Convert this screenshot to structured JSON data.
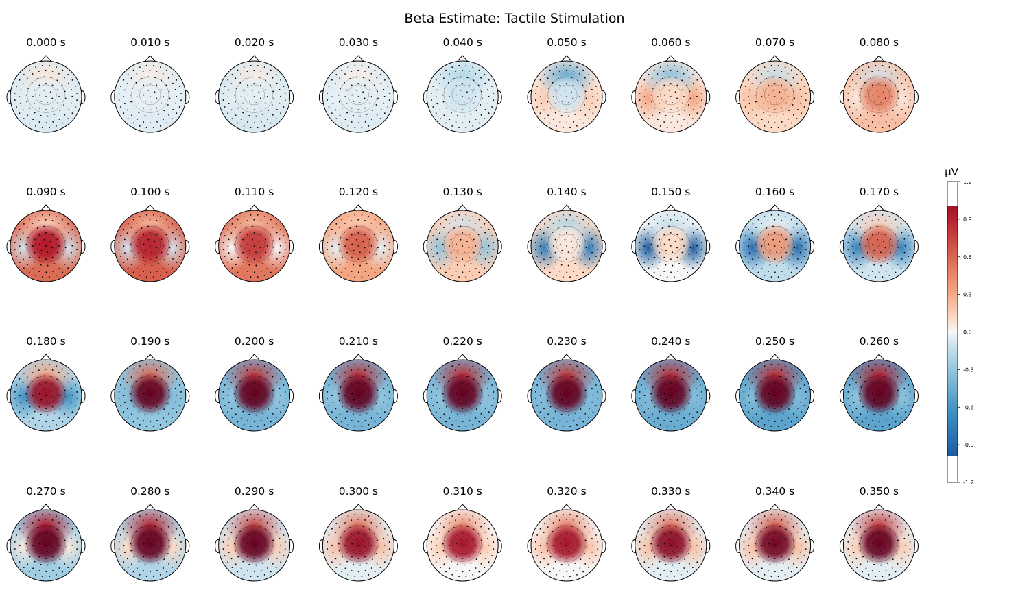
{
  "chart_data": {
    "type": "heatmap",
    "title": "Beta Estimate: Tactile Stimulation",
    "colorbar": {
      "unit": "µV",
      "ticks": [
        "1.2",
        "0.9",
        "0.6",
        "0.3",
        "0.0",
        "-0.3",
        "-0.6",
        "-0.9",
        "-1.2"
      ],
      "range": [
        -1.2,
        1.2
      ],
      "colormap": "RdBu_r",
      "colors": {
        "neg_max": "#053061",
        "neutral": "#f7f7f7",
        "pos_max": "#67001f"
      }
    },
    "time_unit": "s",
    "panels": [
      {
        "label": "0.000 s",
        "front": 0.06,
        "center": -0.05,
        "back": -0.07,
        "lat": -0.05
      },
      {
        "label": "0.010 s",
        "front": 0.04,
        "center": -0.04,
        "back": -0.06,
        "lat": -0.04
      },
      {
        "label": "0.020 s",
        "front": 0.04,
        "center": -0.05,
        "back": -0.08,
        "lat": -0.05
      },
      {
        "label": "0.030 s",
        "front": 0.03,
        "center": -0.05,
        "back": -0.06,
        "lat": -0.04
      },
      {
        "label": "0.040 s",
        "front": -0.2,
        "center": -0.1,
        "back": -0.05,
        "lat": -0.05
      },
      {
        "label": "0.050 s",
        "front": -0.5,
        "center": -0.1,
        "back": 0.05,
        "lat": 0.15
      },
      {
        "label": "0.060 s",
        "front": -0.35,
        "center": 0.1,
        "back": 0.05,
        "lat": 0.3
      },
      {
        "label": "0.070 s",
        "front": -0.15,
        "center": 0.25,
        "back": 0.1,
        "lat": 0.2
      },
      {
        "label": "0.080 s",
        "front": -0.1,
        "center": 0.45,
        "back": 0.2,
        "lat": 0.05
      },
      {
        "label": "0.090 s",
        "front": 0.1,
        "center": 0.9,
        "back": 0.55,
        "lat": -0.1
      },
      {
        "label": "0.100 s",
        "front": 0.2,
        "center": 0.85,
        "back": 0.6,
        "lat": -0.1
      },
      {
        "label": "0.110 s",
        "front": 0.2,
        "center": 0.75,
        "back": 0.5,
        "lat": 0.0
      },
      {
        "label": "0.120 s",
        "front": 0.15,
        "center": 0.6,
        "back": 0.3,
        "lat": -0.05
      },
      {
        "label": "0.130 s",
        "front": -0.1,
        "center": 0.25,
        "back": 0.15,
        "lat": -0.3
      },
      {
        "label": "0.140 s",
        "front": -0.2,
        "center": 0.05,
        "back": 0.1,
        "lat": -0.75
      },
      {
        "label": "0.150 s",
        "front": -0.15,
        "center": 0.1,
        "back": 0.0,
        "lat": -0.95
      },
      {
        "label": "0.160 s",
        "front": -0.05,
        "center": 0.35,
        "back": -0.15,
        "lat": -0.85
      },
      {
        "label": "0.170 s",
        "front": 0.15,
        "center": 0.6,
        "back": -0.1,
        "lat": -0.7
      },
      {
        "label": "0.180 s",
        "front": 0.3,
        "center": 1.0,
        "back": -0.2,
        "lat": -0.6
      },
      {
        "label": "0.190 s",
        "front": 0.55,
        "center": 1.2,
        "back": -0.3,
        "lat": -0.35
      },
      {
        "label": "0.200 s",
        "front": 0.75,
        "center": 1.3,
        "back": -0.4,
        "lat": -0.3
      },
      {
        "label": "0.210 s",
        "front": 0.8,
        "center": 1.35,
        "back": -0.4,
        "lat": -0.3
      },
      {
        "label": "0.220 s",
        "front": 0.8,
        "center": 1.35,
        "back": -0.4,
        "lat": -0.3
      },
      {
        "label": "0.230 s",
        "front": 0.75,
        "center": 1.25,
        "back": -0.4,
        "lat": -0.35
      },
      {
        "label": "0.240 s",
        "front": 0.8,
        "center": 1.3,
        "back": -0.45,
        "lat": -0.35
      },
      {
        "label": "0.250 s",
        "front": 0.8,
        "center": 1.3,
        "back": -0.5,
        "lat": -0.35
      },
      {
        "label": "0.260 s",
        "front": 0.85,
        "center": 1.3,
        "back": -0.5,
        "lat": -0.3
      },
      {
        "label": "0.270 s",
        "front": 0.9,
        "center": 1.35,
        "back": -0.25,
        "lat": 0.05
      },
      {
        "label": "0.280 s",
        "front": 0.85,
        "center": 1.35,
        "back": -0.2,
        "lat": 0.1
      },
      {
        "label": "0.290 s",
        "front": 0.7,
        "center": 1.2,
        "back": -0.1,
        "lat": 0.15
      },
      {
        "label": "0.300 s",
        "front": 0.5,
        "center": 1.0,
        "back": -0.05,
        "lat": 0.2
      },
      {
        "label": "0.310 s",
        "front": 0.4,
        "center": 0.95,
        "back": 0.0,
        "lat": 0.15
      },
      {
        "label": "0.320 s",
        "front": 0.45,
        "center": 0.95,
        "back": 0.0,
        "lat": 0.2
      },
      {
        "label": "0.330 s",
        "front": 0.5,
        "center": 1.05,
        "back": -0.05,
        "lat": 0.2
      },
      {
        "label": "0.340 s",
        "front": 0.6,
        "center": 1.15,
        "back": -0.05,
        "lat": 0.2
      },
      {
        "label": "0.350 s",
        "front": 0.75,
        "center": 1.25,
        "back": -0.05,
        "lat": 0.15
      }
    ]
  }
}
